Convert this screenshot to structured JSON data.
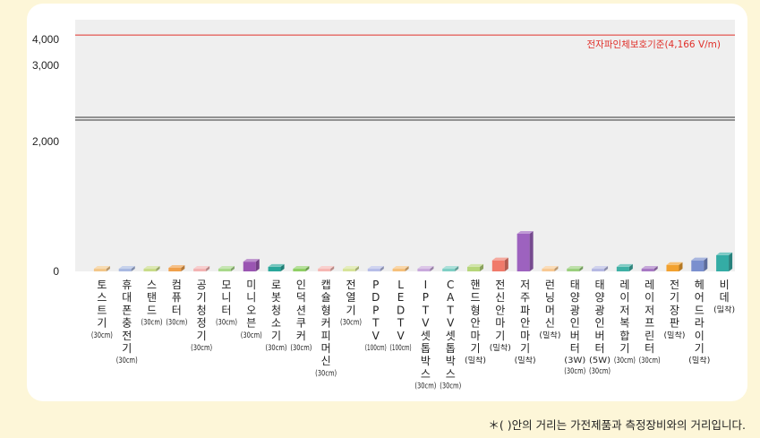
{
  "chart_data": {
    "type": "bar",
    "categories": [
      {
        "name": "토스트기",
        "dist": "(30cm)",
        "value": 0
      },
      {
        "name": "휴대폰충전기",
        "dist": "(30cm)",
        "value": 0
      },
      {
        "name": "스탠드",
        "dist": "(30cm)",
        "value": 0
      },
      {
        "name": "컴퓨터",
        "dist": "(30cm)",
        "value": 0
      },
      {
        "name": "공기청정기",
        "dist": "(30cm)",
        "value": 0
      },
      {
        "name": "모니터",
        "dist": "(30cm)",
        "value": 0
      },
      {
        "name": "미니오븐",
        "dist": "(30cm)",
        "value": 0
      },
      {
        "name": "로봇청소기",
        "dist": "(30cm)",
        "value": 0
      },
      {
        "name": "인덕션쿠커",
        "dist": "(30cm)",
        "value": 0
      },
      {
        "name": "캡슐형커피머신",
        "dist": "(30cm)",
        "value": 0
      },
      {
        "name": "전열기",
        "dist": "(30cm)",
        "value": 0
      },
      {
        "name": "PDPTV",
        "dist": "(100cm)",
        "value": 0
      },
      {
        "name": "LEDTV",
        "dist": "(100cm)",
        "value": 0
      },
      {
        "name": "IPTV셋톱박스",
        "dist": "(30cm)",
        "value": 0
      },
      {
        "name": "CATV셋톱박스",
        "dist": "(30cm)",
        "value": 0
      },
      {
        "name": "핸드형안마기",
        "dist": "(밀착)",
        "value": 0
      },
      {
        "name": "전신안마기",
        "dist": "(밀착)",
        "value": 0
      },
      {
        "name": "저주파안마기",
        "dist": "(밀착)",
        "value": 0
      },
      {
        "name": "런닝머신",
        "dist": "(밀착)",
        "value": 0
      },
      {
        "name": "태양광인버터",
        "dist": "(3W)\n(30cm)",
        "value": 0
      },
      {
        "name": "태양광인버터",
        "dist": "(5W)\n(30cm)",
        "value": 0
      },
      {
        "name": "레이저복합기",
        "dist": "(30cm)",
        "value": 0
      },
      {
        "name": "레이저프린터",
        "dist": "(30cm)",
        "value": 0
      },
      {
        "name": "전기장판",
        "dist": "(밀착)",
        "value": 0
      },
      {
        "name": "헤어드라이기",
        "dist": "(밀착)",
        "value": 0
      },
      {
        "name": "비데",
        "dist": "(밀착)",
        "value": 0
      }
    ],
    "values": [
      20,
      30,
      30,
      55,
      30,
      30,
      150,
      70,
      25,
      35,
      35,
      10,
      20,
      25,
      30,
      70,
      170,
      580,
      15,
      20,
      10,
      70,
      40,
      100,
      170,
      250
    ],
    "colors": [
      "#f3c78a",
      "#a9b9e1",
      "#c9dc8a",
      "#f0a04b",
      "#f3b3b3",
      "#a9d98b",
      "#9a55b2",
      "#2aa79b",
      "#8fcf65",
      "#f6b7b3",
      "#d7e49a",
      "#b7bde8",
      "#f6c07b",
      "#c9a9dc",
      "#7fcfc5",
      "#b6d67a",
      "#f07a6a",
      "#9d62bf",
      "#f8c993",
      "#9bcf7e",
      "#b6b9e3",
      "#3fb0a5",
      "#a879c4",
      "#f2a12f",
      "#7a8fce",
      "#34aca5"
    ],
    "yticks": [
      "0",
      "2,000",
      "3,000",
      "4,000"
    ],
    "reference_line": {
      "label": "전자파인체보호기준(4,166 V/m)",
      "value": 4166,
      "color": "#e0302a"
    }
  },
  "footnote": "＊( )안의 거리는 가전제품과 측정장비와의 거리입니다."
}
